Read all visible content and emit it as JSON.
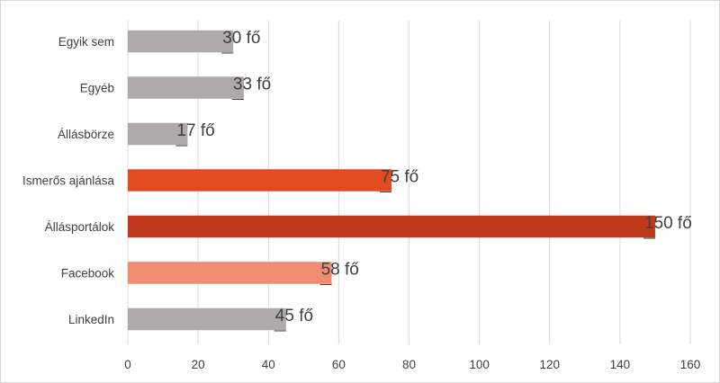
{
  "chart_data": {
    "type": "bar",
    "orientation": "horizontal",
    "title": "",
    "xlabel": "",
    "ylabel": "",
    "categories": [
      "Egyik sem",
      "Egyéb",
      "Állásbörze",
      "Ismerős ajánlása",
      "Állásportálok",
      "Facebook",
      "LinkedIn"
    ],
    "values": [
      30,
      33,
      17,
      75,
      150,
      58,
      45
    ],
    "data_labels": [
      "30 fő",
      "33 fő",
      "17 fő",
      "75 fő",
      "150 fő",
      "58 fő",
      "45 fő"
    ],
    "colors": [
      "#aeaaaa",
      "#aeaaaa",
      "#aeaaaa",
      "#e14b22",
      "#c0391a",
      "#ef8c72",
      "#aeaaaa"
    ],
    "xlim": [
      0,
      160
    ],
    "xticks": [
      0,
      20,
      40,
      60,
      80,
      100,
      120,
      140,
      160
    ],
    "grid": true,
    "legend": false
  }
}
